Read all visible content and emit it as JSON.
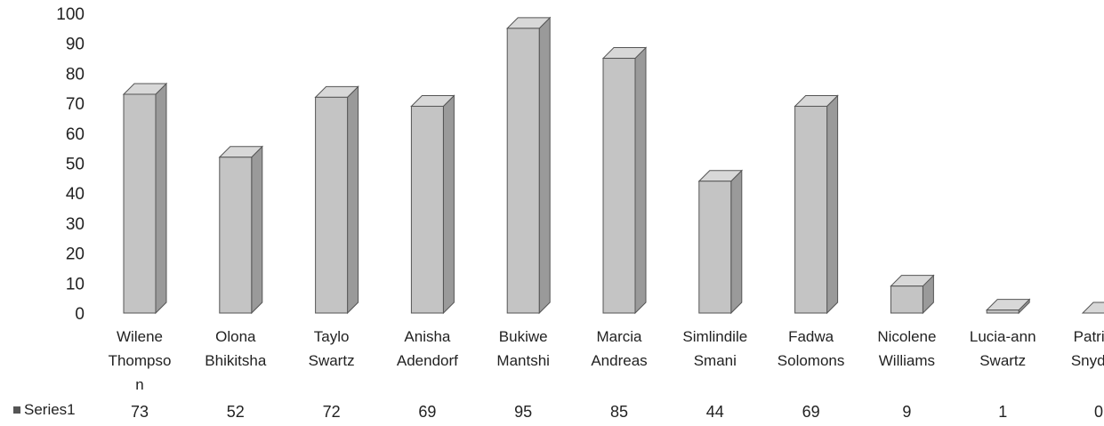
{
  "chart_data": {
    "type": "bar",
    "title": "",
    "xlabel": "",
    "ylabel": "",
    "ylim": [
      0,
      100
    ],
    "yticks": [
      0,
      10,
      20,
      30,
      40,
      50,
      60,
      70,
      80,
      90,
      100
    ],
    "categories": [
      [
        "Wilene",
        "Thompso",
        "n"
      ],
      [
        "Olona",
        "Bhikitsha"
      ],
      [
        "Taylo",
        "Swartz"
      ],
      [
        "Anisha",
        "Adendorf"
      ],
      [
        "Bukiwe",
        "Mantshi"
      ],
      [
        "Marcia",
        "Andreas"
      ],
      [
        "Simlindile",
        "Smani"
      ],
      [
        "Fadwa",
        "Solomons"
      ],
      [
        "Nicolene",
        "Williams"
      ],
      [
        "Lucia-ann",
        "Swartz"
      ],
      [
        "Patricia",
        "Snyders"
      ]
    ],
    "series": [
      {
        "name": "Series1",
        "values": [
          73,
          52,
          72,
          69,
          95,
          85,
          44,
          69,
          9,
          1,
          0
        ]
      }
    ],
    "data_table": true,
    "legend": "data-table-left",
    "grid": false,
    "colors": {
      "bar_front": "#c4c4c4",
      "bar_side": "#9a9a9a",
      "bar_top": "#d8d8d8",
      "bar_edge": "#555555",
      "legend_key": "#555555"
    }
  }
}
